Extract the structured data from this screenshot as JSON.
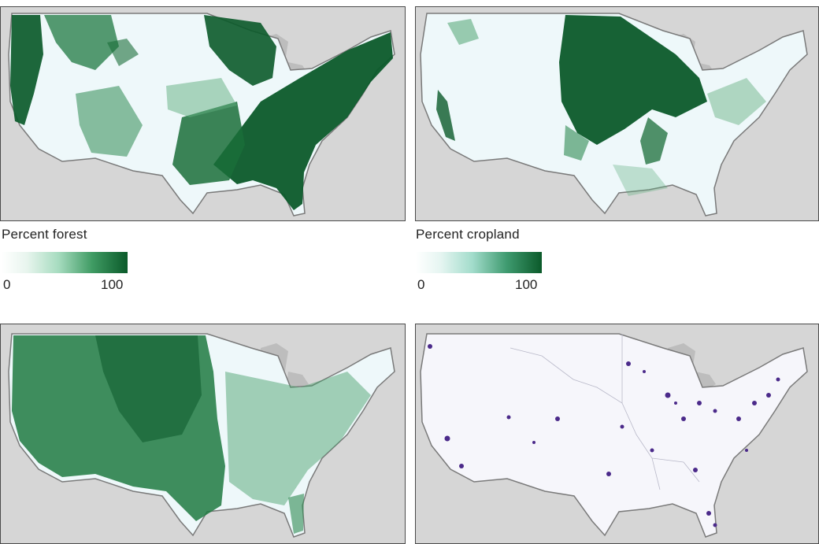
{
  "panels": [
    {
      "id": "forest",
      "layer": "Percent forest",
      "color": "#0b5a2a"
    },
    {
      "id": "cropland",
      "layer": "Percent cropland",
      "color": "#0b5a2a"
    },
    {
      "id": "grassland",
      "layer": "",
      "color": "#1e7a3c"
    },
    {
      "id": "urban",
      "layer": "",
      "color": "#4b2a8a"
    }
  ],
  "legends": {
    "forest": {
      "title": "Percent forest",
      "min": "0",
      "max": "100"
    },
    "cropland": {
      "title": "Percent cropland",
      "min": "0",
      "max": "100"
    }
  },
  "colors": {
    "background_land": "#d6d6d6",
    "us_base": "#eef8fa",
    "urban_base": "#f6f6fb",
    "border": "#7a7a7a",
    "green_dark": "#0b5a2a",
    "purple": "#4b2a8a"
  }
}
